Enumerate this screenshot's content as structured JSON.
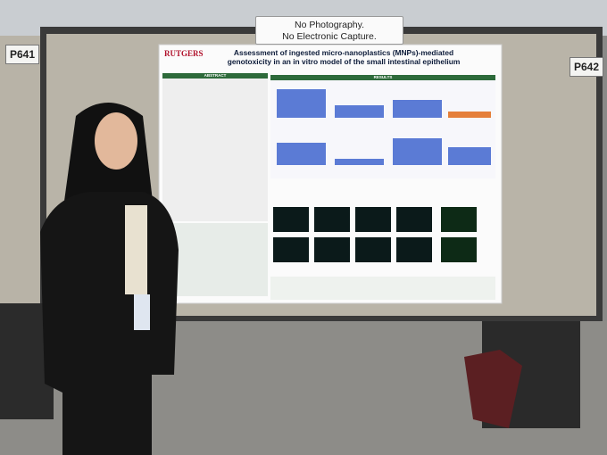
{
  "signs": {
    "notice": [
      "No Photography.",
      "No Electronic Capture."
    ],
    "left_board": "P641",
    "right_board": "P642"
  },
  "poster": {
    "logo": "RUTGERS",
    "title": "Assessment of ingested micro-nanoplastics (MNPs)-mediated genotoxicity in an in vitro model of the small intestinal epithelium",
    "sections": [
      "ABSTRACT",
      "RESULTS"
    ]
  }
}
